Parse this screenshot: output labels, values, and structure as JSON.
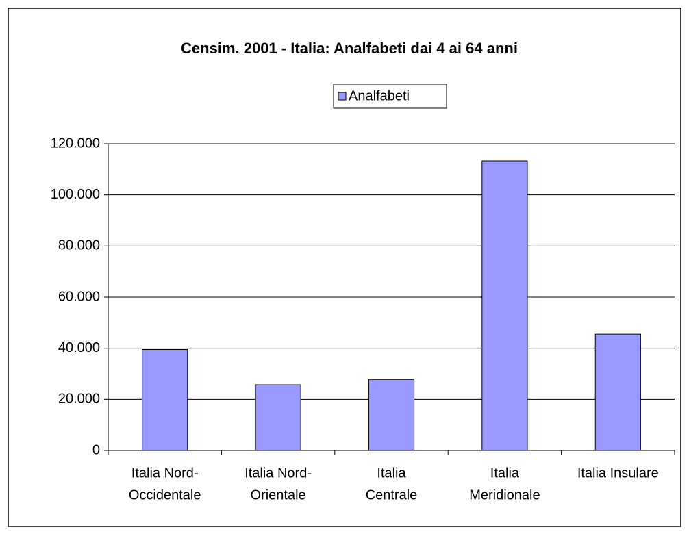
{
  "chart_data": {
    "type": "bar",
    "title": "Censim. 2001 - Italia: Analfabeti dai 4 ai 64 anni",
    "categories": [
      [
        "Italia Nord-",
        "Occidentale"
      ],
      [
        "Italia Nord-",
        "Orientale"
      ],
      [
        "Italia",
        "Centrale"
      ],
      [
        "Italia",
        "Meridionale"
      ],
      [
        "Italia Insulare"
      ]
    ],
    "series": [
      {
        "name": "Analfabeti",
        "color": "#9999ff",
        "values": [
          39500,
          25700,
          27800,
          113300,
          45500
        ]
      }
    ],
    "ylim": [
      0,
      120000
    ],
    "yticks": [
      0,
      {
        "value": 20000,
        "label": "20.000"
      },
      {
        "value": 40000,
        "label": "40.000"
      },
      {
        "value": 60000,
        "label": "60.000"
      },
      {
        "value": 80000,
        "label": "80.000"
      },
      {
        "value": 100000,
        "label": "100.000"
      },
      {
        "value": 120000,
        "label": "120.000"
      }
    ],
    "grid": true,
    "legend": "top"
  }
}
